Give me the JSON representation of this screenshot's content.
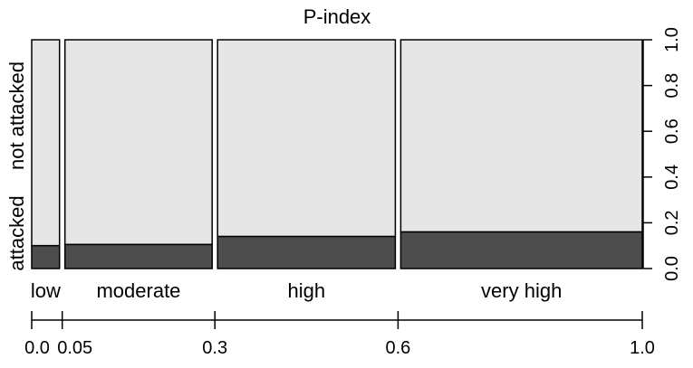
{
  "chart_data": {
    "type": "spineplot",
    "title": "P-index",
    "categories": [
      "low",
      "moderate",
      "high",
      "very high"
    ],
    "x_breaks": [
      0.0,
      0.05,
      0.3,
      0.6,
      1.0
    ],
    "x_tick_labels": [
      "0.0",
      "0.05",
      "0.3",
      "0.6",
      "1.0"
    ],
    "series": [
      {
        "name": "attacked",
        "values": [
          0.1,
          0.105,
          0.14,
          0.16
        ],
        "color": "#4d4d4d"
      },
      {
        "name": "not attacked",
        "values": [
          0.9,
          0.895,
          0.86,
          0.84
        ],
        "color": "#e6e6e6"
      }
    ],
    "y_axis": {
      "side": "right",
      "ticks": [
        0.0,
        0.2,
        0.4,
        0.6,
        0.8,
        1.0
      ],
      "tick_labels": [
        "0.0",
        "0.2",
        "0.4",
        "0.6",
        "0.8",
        "1.0"
      ],
      "ylim": [
        0,
        1
      ]
    },
    "left_labels": [
      "attacked",
      "not attacked"
    ]
  }
}
